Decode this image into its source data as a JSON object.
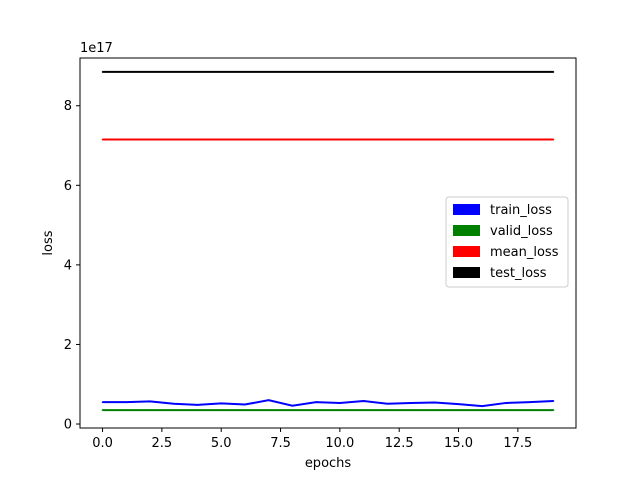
{
  "chart_data": {
    "type": "line",
    "title": "",
    "xlabel": "epochs",
    "ylabel": "loss",
    "y_offset_label": "1e17",
    "x": [
      0,
      1,
      2,
      3,
      4,
      5,
      6,
      7,
      8,
      9,
      10,
      11,
      12,
      13,
      14,
      15,
      16,
      17,
      18,
      19
    ],
    "xlim": [
      -0.95,
      19.95
    ],
    "ylim": [
      -0.1,
      9.2
    ],
    "y_units_multiplier": "1e17",
    "xticks": [
      0,
      2.5,
      5,
      7.5,
      10,
      12.5,
      15,
      17.5
    ],
    "xtick_labels": [
      "0.0",
      "2.5",
      "5.0",
      "7.5",
      "10.0",
      "12.5",
      "15.0",
      "17.5"
    ],
    "yticks": [
      0,
      2,
      4,
      6,
      8
    ],
    "ytick_labels": [
      "0",
      "2",
      "4",
      "6",
      "8"
    ],
    "grid": false,
    "legend_placement": "center-right",
    "series": [
      {
        "name": "train_loss",
        "color": "#0000ff",
        "values": [
          0.55,
          0.55,
          0.57,
          0.51,
          0.48,
          0.52,
          0.49,
          0.6,
          0.46,
          0.55,
          0.53,
          0.58,
          0.51,
          0.53,
          0.54,
          0.5,
          0.45,
          0.53,
          0.55,
          0.58
        ]
      },
      {
        "name": "valid_loss",
        "color": "#008000",
        "values": [
          0.35,
          0.35,
          0.35,
          0.35,
          0.35,
          0.35,
          0.35,
          0.35,
          0.35,
          0.35,
          0.35,
          0.35,
          0.35,
          0.35,
          0.35,
          0.35,
          0.35,
          0.35,
          0.35,
          0.35
        ]
      },
      {
        "name": "mean_loss",
        "color": "#ff0000",
        "values": [
          7.15,
          7.15,
          7.15,
          7.15,
          7.15,
          7.15,
          7.15,
          7.15,
          7.15,
          7.15,
          7.15,
          7.15,
          7.15,
          7.15,
          7.15,
          7.15,
          7.15,
          7.15,
          7.15,
          7.15
        ]
      },
      {
        "name": "test_loss",
        "color": "#000000",
        "values": [
          8.85,
          8.85,
          8.85,
          8.85,
          8.85,
          8.85,
          8.85,
          8.85,
          8.85,
          8.85,
          8.85,
          8.85,
          8.85,
          8.85,
          8.85,
          8.85,
          8.85,
          8.85,
          8.85,
          8.85
        ]
      }
    ]
  }
}
